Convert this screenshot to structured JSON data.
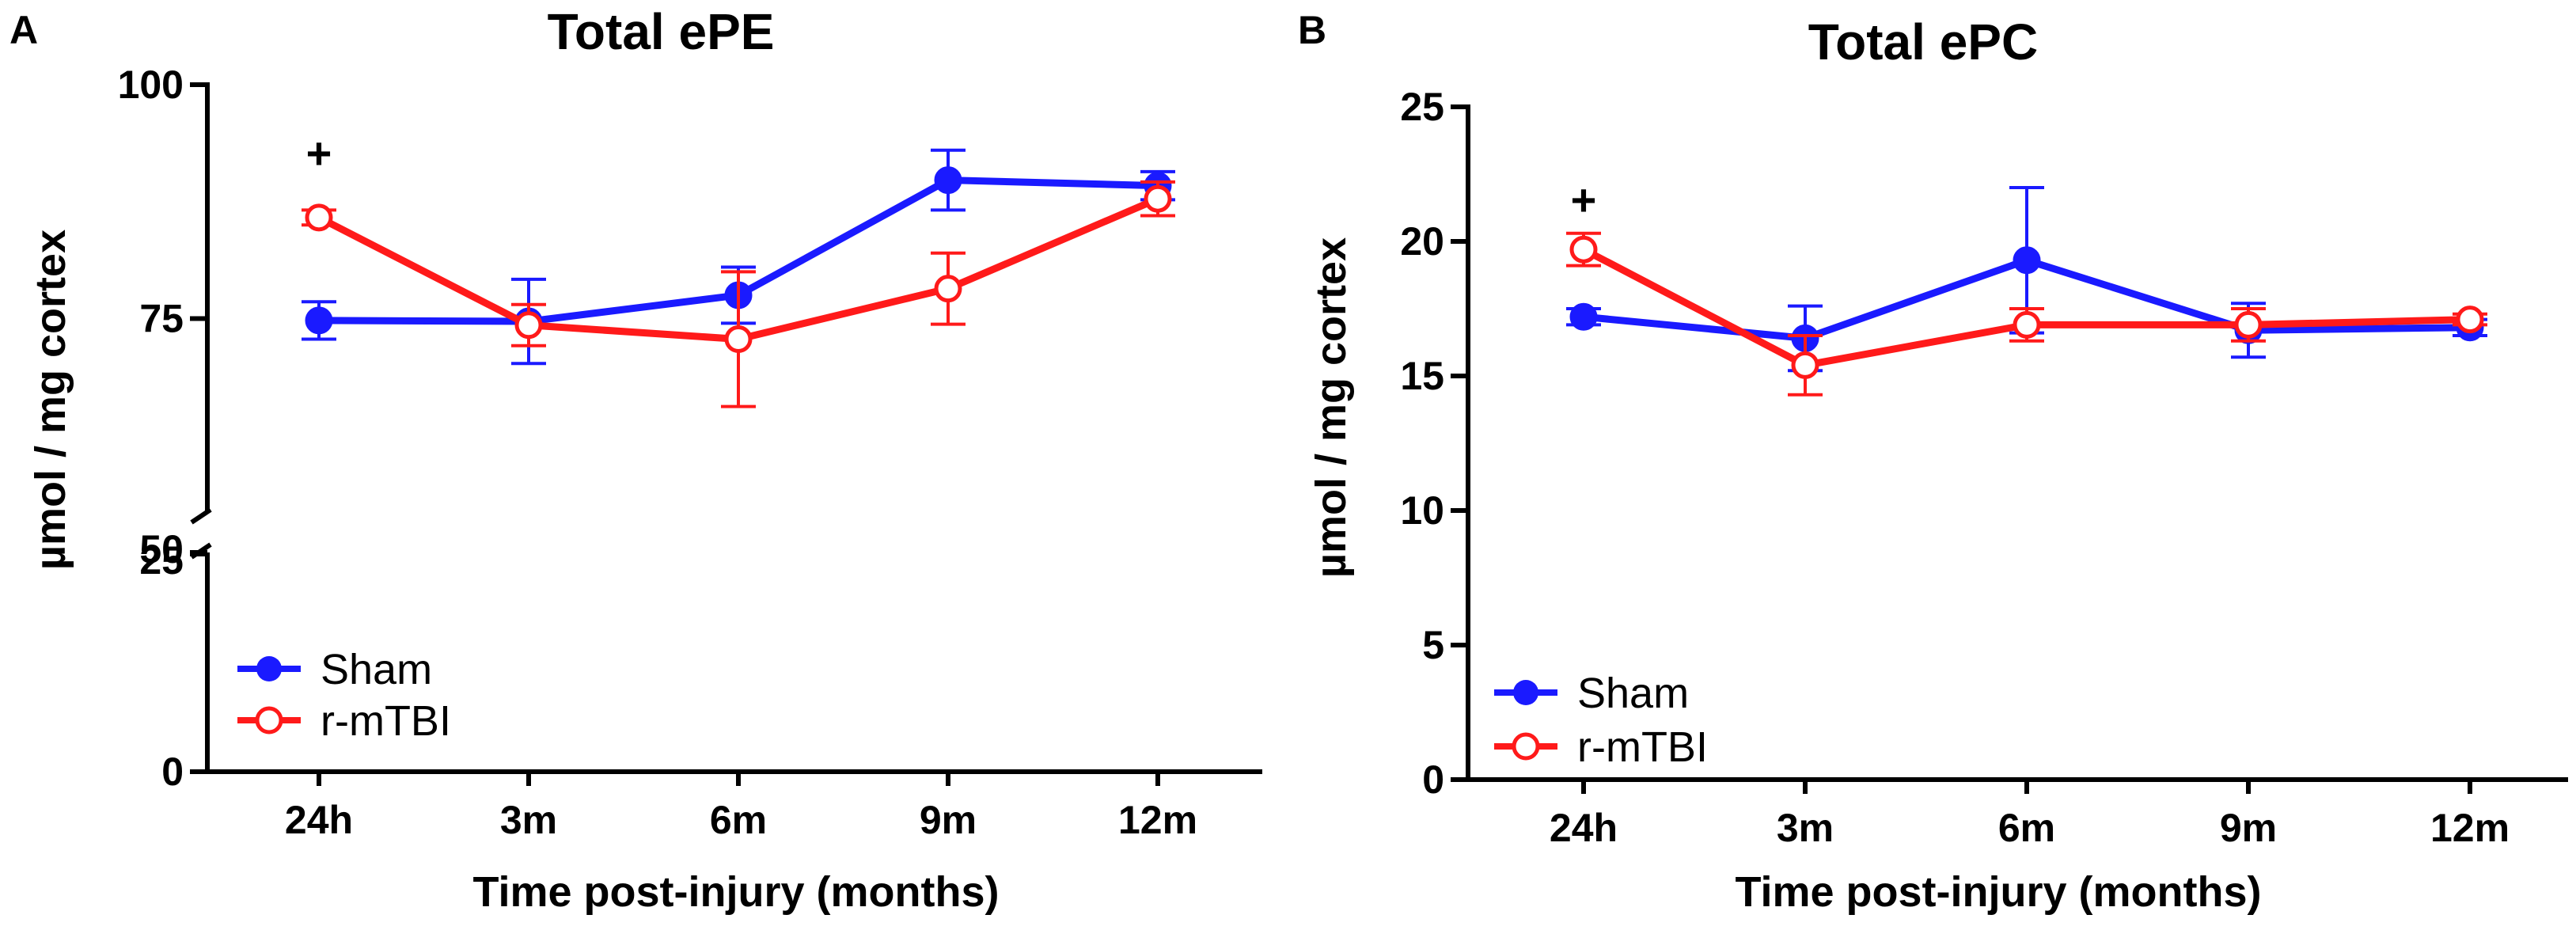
{
  "chart_data": [
    {
      "type": "line",
      "panel_label": "A",
      "title": "Total ePE",
      "xlabel": "Time post-injury (months)",
      "ylabel": "µmol / mg cortex",
      "categories": [
        "24h",
        "3m",
        "6m",
        "9m",
        "12m"
      ],
      "y_ticks_upper": [
        "100",
        "75",
        "50"
      ],
      "y_ticks_lower": [
        "25",
        "0"
      ],
      "y_break": {
        "lower_range": [
          0,
          25
        ],
        "upper_range": [
          50,
          100
        ]
      },
      "series": [
        {
          "name": "Sham",
          "color": "#1a1aff",
          "marker": "filled-circle",
          "values": [
            74.8,
            74.7,
            77.5,
            89.8,
            89.2
          ],
          "errors": [
            2.0,
            4.5,
            3.0,
            3.2,
            1.5
          ]
        },
        {
          "name": "r-mTBI",
          "color": "#ff1a1a",
          "marker": "open-circle",
          "values": [
            85.8,
            74.3,
            72.8,
            78.2,
            87.8
          ],
          "errors": [
            0.8,
            2.2,
            7.2,
            3.8,
            1.8
          ]
        }
      ],
      "annotations": [
        {
          "text": "+",
          "category": "24h"
        }
      ],
      "legend": {
        "position": "bottom-left",
        "entries": [
          "Sham",
          "r-mTBI"
        ]
      }
    },
    {
      "type": "line",
      "panel_label": "B",
      "title": "Total ePC",
      "xlabel": "Time post-injury (months)",
      "ylabel": "µmol / mg cortex",
      "categories": [
        "24h",
        "3m",
        "6m",
        "9m",
        "12m"
      ],
      "ylim": [
        0,
        25
      ],
      "y_ticks": [
        "25",
        "20",
        "15",
        "10",
        "5",
        "0"
      ],
      "series": [
        {
          "name": "Sham",
          "color": "#1a1aff",
          "marker": "filled-circle",
          "values": [
            17.2,
            16.4,
            19.3,
            16.7,
            16.8
          ],
          "errors": [
            0.3,
            1.2,
            2.7,
            1.0,
            0.3
          ]
        },
        {
          "name": "r-mTBI",
          "color": "#ff1a1a",
          "marker": "open-circle",
          "values": [
            19.7,
            15.4,
            16.9,
            16.9,
            17.1
          ],
          "errors": [
            0.6,
            1.1,
            0.6,
            0.6,
            0.2
          ]
        }
      ],
      "annotations": [
        {
          "text": "+",
          "category": "24h"
        }
      ],
      "legend": {
        "position": "bottom-left",
        "entries": [
          "Sham",
          "r-mTBI"
        ]
      }
    }
  ]
}
